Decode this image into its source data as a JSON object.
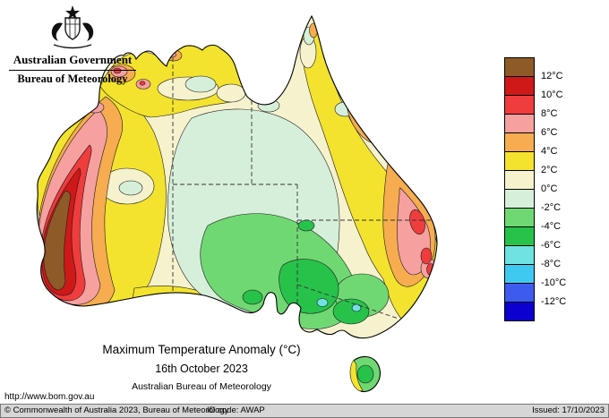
{
  "header": {
    "gov_title": "Australian Government",
    "bureau_title": "Bureau of Meteorology"
  },
  "titles": {
    "map_title": "Maximum Temperature Anomaly (°C)",
    "map_date": "16th October 2023",
    "map_org": "Australian Bureau of Meteorology"
  },
  "url": "http://www.bom.gov.au",
  "legend": {
    "labels": [
      "12°C",
      "10°C",
      "8°C",
      "6°C",
      "4°C",
      "2°C",
      "0°C",
      "-2°C",
      "-4°C",
      "-6°C",
      "-8°C",
      "-10°C",
      "-12°C"
    ],
    "colors": [
      "#8d5a28",
      "#cf1818",
      "#ef3c3c",
      "#f6a0a0",
      "#f6ac4f",
      "#f3e32e",
      "#f6f2cd",
      "#d6efda",
      "#70d873",
      "#27c24a",
      "#6fe2e2",
      "#3fc9f0",
      "#3d5bef",
      "#0b00d0"
    ]
  },
  "footer": {
    "copyright": "© Commonwealth of Australia 2023, Bureau of Meteorology",
    "id_code": "ID code: AWAP",
    "issued": "Issued: 17/10/2023"
  }
}
